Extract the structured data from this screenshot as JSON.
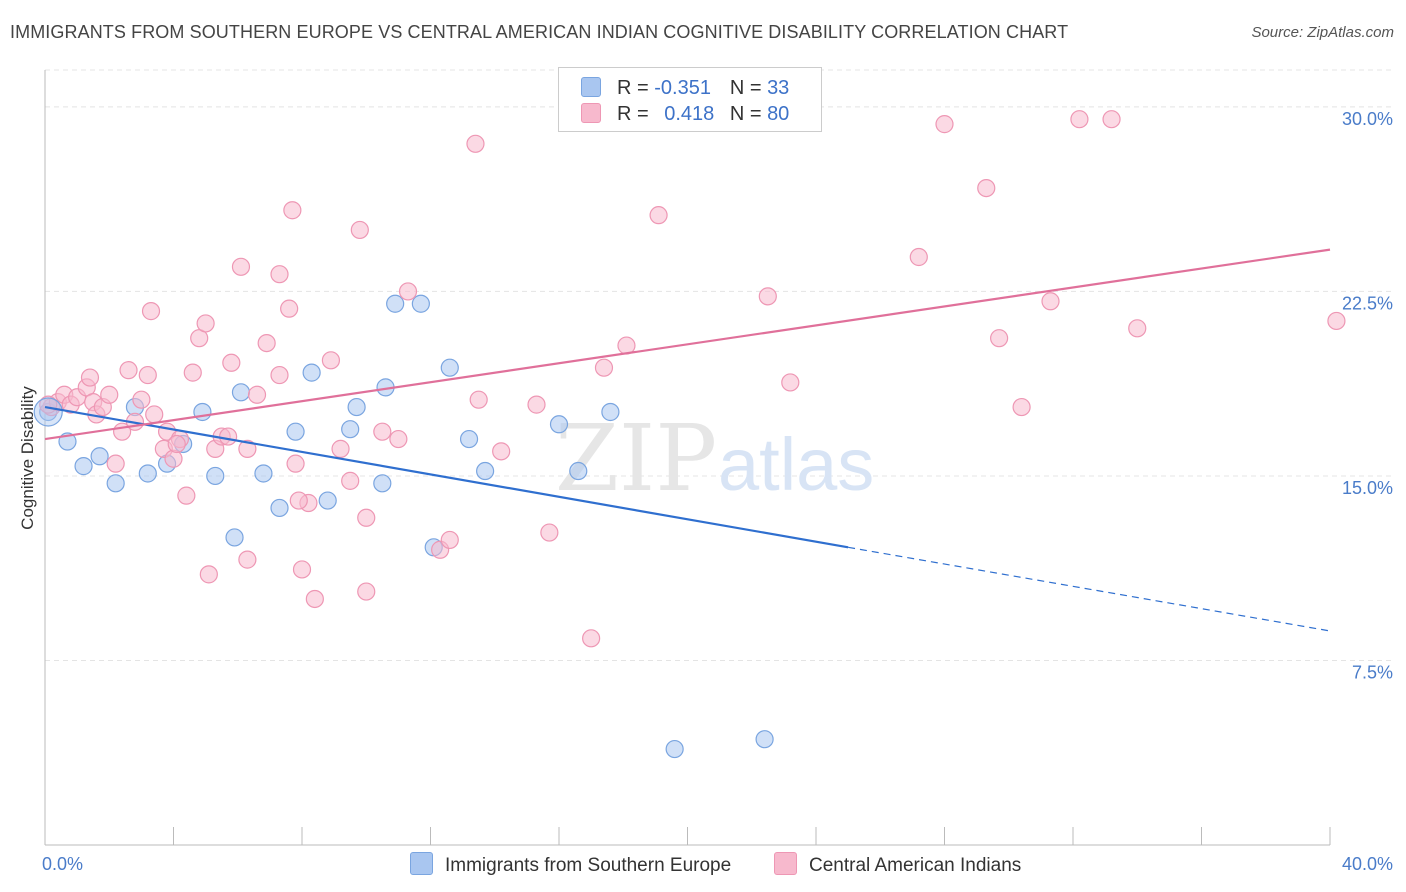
{
  "title": "IMMIGRANTS FROM SOUTHERN EUROPE VS CENTRAL AMERICAN INDIAN COGNITIVE DISABILITY CORRELATION CHART",
  "source": "Source: ZipAtlas.com",
  "watermark": {
    "zip": "ZIP",
    "atlas": "atlas"
  },
  "legend": {
    "r_label": "R =",
    "n_label": "N =",
    "rows": [
      {
        "r": "-0.351",
        "n": "33",
        "color": "#a9c6f0",
        "border": "#7aa5e0"
      },
      {
        "r": "0.418",
        "n": "80",
        "color": "#f7b9cd",
        "border": "#ee97b4"
      }
    ]
  },
  "chart_data": {
    "type": "scatter",
    "ylabel": "Cognitive Disability",
    "xlim": [
      0,
      40
    ],
    "ylim": [
      0,
      31.5
    ],
    "y_ticks": [
      7.5,
      15.0,
      22.5,
      30.0
    ],
    "y_tick_labels": [
      "7.5%",
      "15.0%",
      "22.5%",
      "30.0%"
    ],
    "x_tick_labels": [
      "0.0%",
      "40.0%"
    ],
    "grid": true,
    "series": [
      {
        "name": "Immigrants from Southern Europe",
        "color": "#a9c6f0",
        "stroke": "#7aa5e0",
        "line_color": "#2f6fcf",
        "trend": {
          "x0": 0,
          "y0": 17.8,
          "x1": 25,
          "y1": 12.1,
          "x_dash_end": 40,
          "y_dash_end": 8.7
        },
        "points": [
          [
            0.1,
            17.6
          ],
          [
            0.7,
            16.4
          ],
          [
            1.2,
            15.4
          ],
          [
            1.7,
            15.8
          ],
          [
            2.2,
            14.7
          ],
          [
            2.8,
            17.8
          ],
          [
            3.2,
            15.1
          ],
          [
            3.8,
            15.5
          ],
          [
            4.3,
            16.3
          ],
          [
            4.9,
            17.6
          ],
          [
            5.3,
            15.0
          ],
          [
            5.9,
            12.5
          ],
          [
            6.1,
            18.4
          ],
          [
            6.8,
            15.1
          ],
          [
            7.3,
            13.7
          ],
          [
            7.8,
            16.8
          ],
          [
            8.3,
            19.2
          ],
          [
            8.8,
            14.0
          ],
          [
            9.5,
            16.9
          ],
          [
            9.7,
            17.8
          ],
          [
            10.5,
            14.7
          ],
          [
            10.6,
            18.6
          ],
          [
            10.9,
            22.0
          ],
          [
            11.7,
            22.0
          ],
          [
            12.1,
            12.1
          ],
          [
            12.6,
            19.4
          ],
          [
            13.2,
            16.5
          ],
          [
            13.7,
            15.2
          ],
          [
            16.0,
            17.1
          ],
          [
            16.6,
            15.2
          ],
          [
            17.6,
            17.6
          ],
          [
            19.6,
            3.9
          ],
          [
            22.4,
            4.3
          ]
        ]
      },
      {
        "name": "Central American Indians",
        "color": "#f7b9cd",
        "stroke": "#ee97b4",
        "line_color": "#e0709a",
        "trend": {
          "x0": 0,
          "y0": 16.5,
          "x1": 40,
          "y1": 24.2
        },
        "points": [
          [
            0.2,
            17.8
          ],
          [
            0.4,
            18.0
          ],
          [
            0.6,
            18.3
          ],
          [
            0.8,
            17.9
          ],
          [
            1.0,
            18.2
          ],
          [
            1.3,
            18.6
          ],
          [
            1.4,
            19.0
          ],
          [
            1.5,
            18.0
          ],
          [
            1.6,
            17.5
          ],
          [
            1.8,
            17.8
          ],
          [
            2.0,
            18.3
          ],
          [
            2.2,
            15.5
          ],
          [
            2.4,
            16.8
          ],
          [
            2.6,
            19.3
          ],
          [
            2.8,
            17.2
          ],
          [
            3.0,
            18.1
          ],
          [
            3.2,
            19.1
          ],
          [
            3.3,
            21.7
          ],
          [
            3.4,
            17.5
          ],
          [
            3.7,
            16.1
          ],
          [
            3.8,
            16.8
          ],
          [
            4.0,
            15.7
          ],
          [
            4.2,
            16.5
          ],
          [
            4.4,
            14.2
          ],
          [
            4.6,
            19.2
          ],
          [
            4.8,
            20.6
          ],
          [
            5.0,
            21.2
          ],
          [
            5.1,
            11.0
          ],
          [
            5.3,
            16.1
          ],
          [
            5.5,
            16.6
          ],
          [
            5.7,
            16.6
          ],
          [
            5.8,
            19.6
          ],
          [
            6.1,
            23.5
          ],
          [
            6.3,
            11.6
          ],
          [
            6.3,
            16.1
          ],
          [
            6.6,
            18.3
          ],
          [
            6.9,
            20.4
          ],
          [
            7.3,
            23.2
          ],
          [
            7.3,
            19.1
          ],
          [
            7.6,
            21.8
          ],
          [
            7.7,
            25.8
          ],
          [
            7.8,
            15.5
          ],
          [
            8.0,
            11.2
          ],
          [
            8.2,
            13.9
          ],
          [
            8.4,
            10.0
          ],
          [
            8.9,
            19.7
          ],
          [
            9.2,
            16.1
          ],
          [
            9.5,
            14.8
          ],
          [
            9.8,
            25.0
          ],
          [
            10.0,
            13.3
          ],
          [
            10.0,
            10.3
          ],
          [
            10.5,
            16.8
          ],
          [
            11.0,
            16.5
          ],
          [
            11.3,
            22.5
          ],
          [
            12.3,
            12.0
          ],
          [
            12.6,
            12.4
          ],
          [
            13.4,
            28.5
          ],
          [
            13.5,
            18.1
          ],
          [
            14.2,
            16.0
          ],
          [
            15.3,
            17.9
          ],
          [
            15.7,
            12.7
          ],
          [
            17.0,
            8.4
          ],
          [
            17.4,
            19.4
          ],
          [
            18.1,
            20.3
          ],
          [
            19.1,
            25.6
          ],
          [
            22.5,
            22.3
          ],
          [
            23.2,
            18.8
          ],
          [
            27.2,
            23.9
          ],
          [
            28.0,
            29.3
          ],
          [
            29.3,
            26.7
          ],
          [
            29.7,
            20.6
          ],
          [
            30.4,
            17.8
          ],
          [
            31.3,
            22.1
          ],
          [
            32.2,
            29.5
          ],
          [
            33.2,
            29.5
          ],
          [
            34.0,
            21.0
          ],
          [
            40.2,
            21.3
          ],
          [
            0.1,
            17.9
          ],
          [
            4.1,
            16.3
          ],
          [
            7.9,
            14.0
          ]
        ]
      }
    ]
  }
}
